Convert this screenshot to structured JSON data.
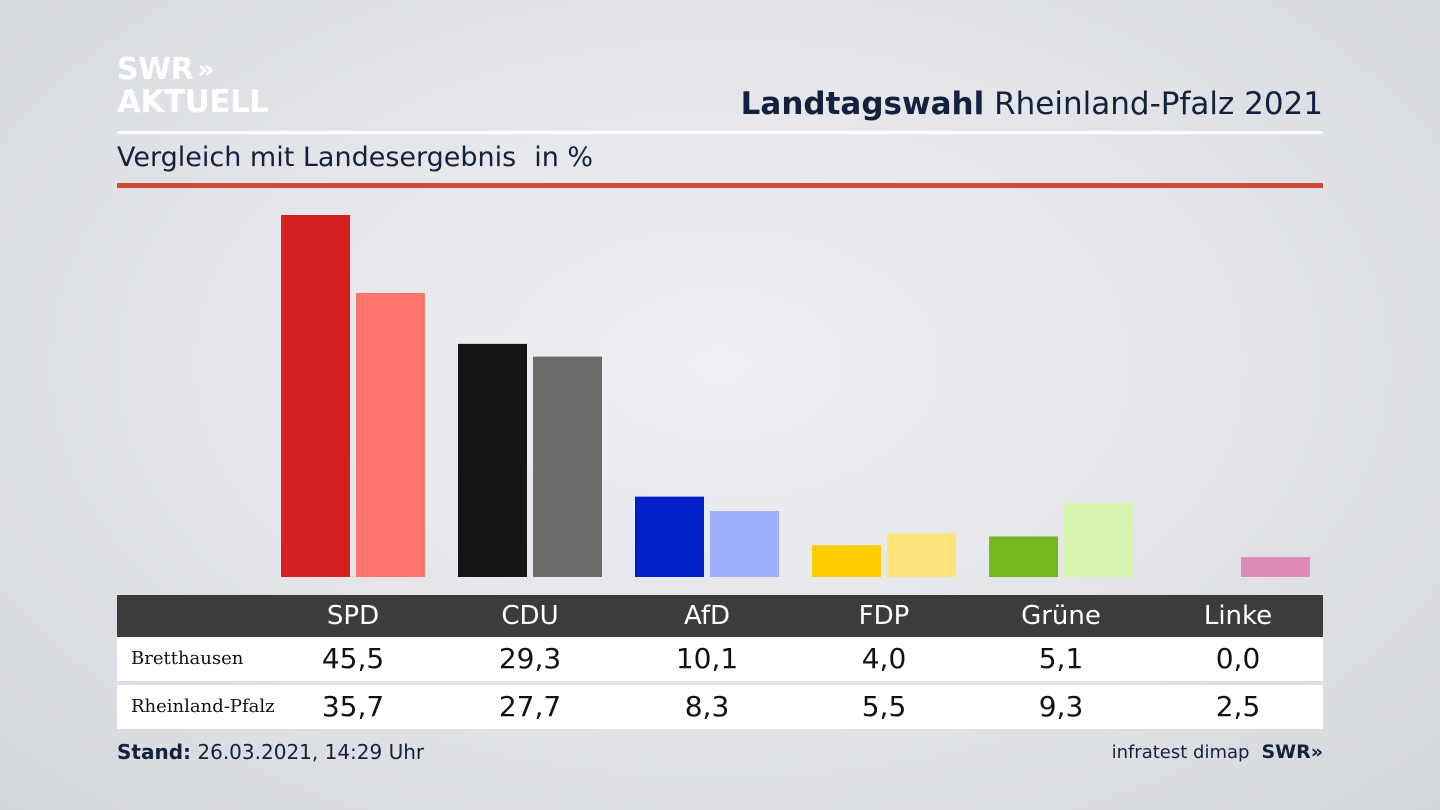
{
  "logo": {
    "line1": "SWR",
    "chevrons": "»",
    "line2": "AKTUELL"
  },
  "header": {
    "title_bold": "Landtagswahl",
    "title_rest": "Rheinland-Pfalz 2021"
  },
  "subheader": {
    "text": "Vergleich mit Landesergebnis",
    "unit": "in %"
  },
  "colors": {
    "accent_red": "#d04a38",
    "table_header": "#3c3c3c"
  },
  "chart_data": {
    "type": "bar",
    "categories": [
      "SPD",
      "CDU",
      "AfD",
      "FDP",
      "Grüne",
      "Linke"
    ],
    "series": [
      {
        "name": "Bretthausen",
        "values": [
          45.5,
          29.3,
          10.1,
          4.0,
          5.1,
          0.0
        ],
        "labels": [
          "45,5",
          "29,3",
          "10,1",
          "4,0",
          "5,1",
          "0,0"
        ],
        "colors": [
          "#d42020",
          "#141414",
          "#0021c8",
          "#ffcc00",
          "#76b81f",
          "#e08ab8"
        ]
      },
      {
        "name": "Rheinland-Pfalz",
        "values": [
          35.7,
          27.7,
          8.3,
          5.5,
          9.3,
          2.5
        ],
        "labels": [
          "35,7",
          "27,7",
          "8,3",
          "5,5",
          "9,3",
          "2,5"
        ],
        "colors": [
          "#ff746c",
          "#6d6b69",
          "#9fb0ff",
          "#ffe37a",
          "#d7f5b0",
          "#e08ab8"
        ]
      }
    ],
    "ylim": [
      0,
      45.5
    ]
  },
  "footer": {
    "stand_label": "Stand:",
    "stand_value": "26.03.2021, 14:29 Uhr",
    "source": "infratest dimap",
    "brand": "SWR»"
  }
}
